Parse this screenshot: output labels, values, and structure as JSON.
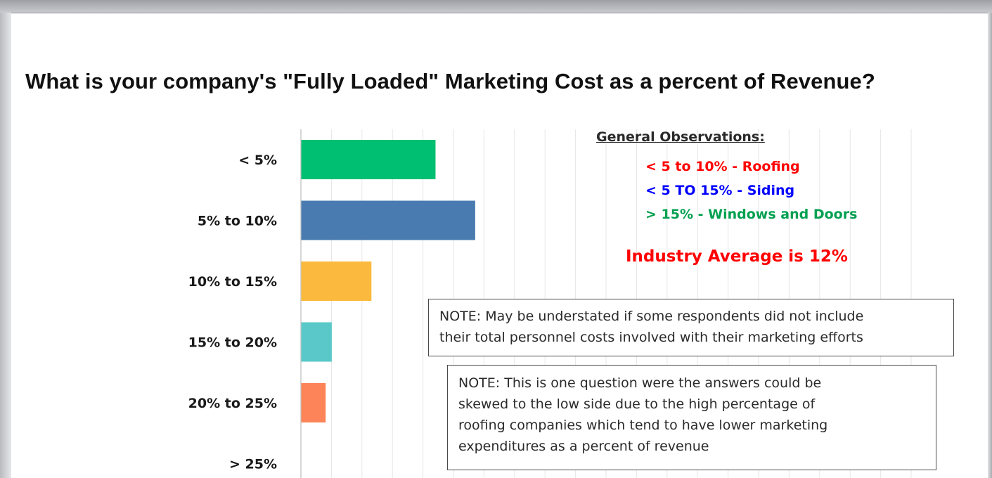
{
  "chart_data": {
    "type": "bar",
    "orientation": "horizontal",
    "title": "What is your company's \"Fully Loaded\" Marketing Cost as a percent of Revenue?",
    "categories": [
      "< 5%",
      "5% to 10%",
      "10% to 15%",
      "15% to 20%",
      "20% to 25%",
      "> 25%"
    ],
    "values": [
      22.0,
      28.5,
      11.5,
      5.0,
      4.0,
      0
    ],
    "colors": [
      "#00bf72",
      "#4a7bb0",
      "#fbba3d",
      "#5ac8c8",
      "#fc8458",
      "#cccccc"
    ],
    "xlim": [
      0,
      100
    ],
    "grid": true,
    "xlabel": "",
    "ylabel": ""
  },
  "observations": {
    "heading": "General Observations:",
    "items": [
      {
        "text": "< 5 to 10% - Roofing",
        "color": "#ff0000"
      },
      {
        "text": "< 5 TO 15% - Siding",
        "color": "#0000ff"
      },
      {
        "text": "> 15% - Windows and Doors",
        "color": "#00a050"
      }
    ],
    "industry_average": {
      "text": "Industry Average is 12%",
      "color": "#ff0000"
    }
  },
  "notes": [
    "NOTE: May be understated if some respondents did not include\ntheir total personnel costs involved with their marketing efforts",
    "NOTE: This is one question were the answers could be\nskewed to the low side due to the high percentage of\nroofing companies which tend to have lower marketing\nexpenditures as a percent of revenue"
  ]
}
